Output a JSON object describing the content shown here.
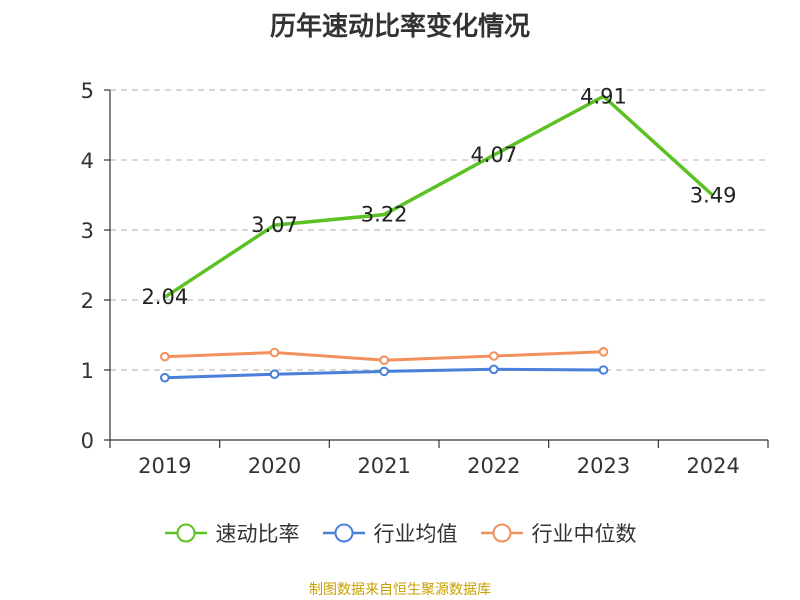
{
  "title": "历年速动比率变化情况",
  "source_note": "制图数据来自恒生聚源数据库",
  "colors": {
    "axis": "#333333",
    "grid": "#bfbfbf",
    "text": "#333333",
    "source": "#c8a000"
  },
  "chart_data": {
    "type": "line",
    "title": "历年速动比率变化情况",
    "x": [
      "2019",
      "2020",
      "2021",
      "2022",
      "2023",
      "2024"
    ],
    "xlabel": "",
    "ylabel": "",
    "ylim": [
      0,
      5
    ],
    "yticks": [
      "0",
      "1",
      "2",
      "3",
      "4",
      "5"
    ],
    "grid": "horizontal dashed",
    "legend_position": "bottom",
    "series": [
      {
        "name": "速动比率",
        "color": "#5cc122",
        "values": [
          2.04,
          3.07,
          3.22,
          4.07,
          4.91,
          3.49
        ],
        "labels": [
          "2.04",
          "3.07",
          "3.22",
          "4.07",
          "4.91",
          "3.49"
        ],
        "markers": false
      },
      {
        "name": "行业均值",
        "color": "#4a7fdc",
        "values": [
          0.89,
          0.94,
          0.98,
          1.01,
          1.0,
          null
        ],
        "markers": true
      },
      {
        "name": "行业中位数",
        "color": "#f2905c",
        "values": [
          1.19,
          1.25,
          1.14,
          1.2,
          1.26,
          null
        ],
        "markers": true
      }
    ]
  }
}
